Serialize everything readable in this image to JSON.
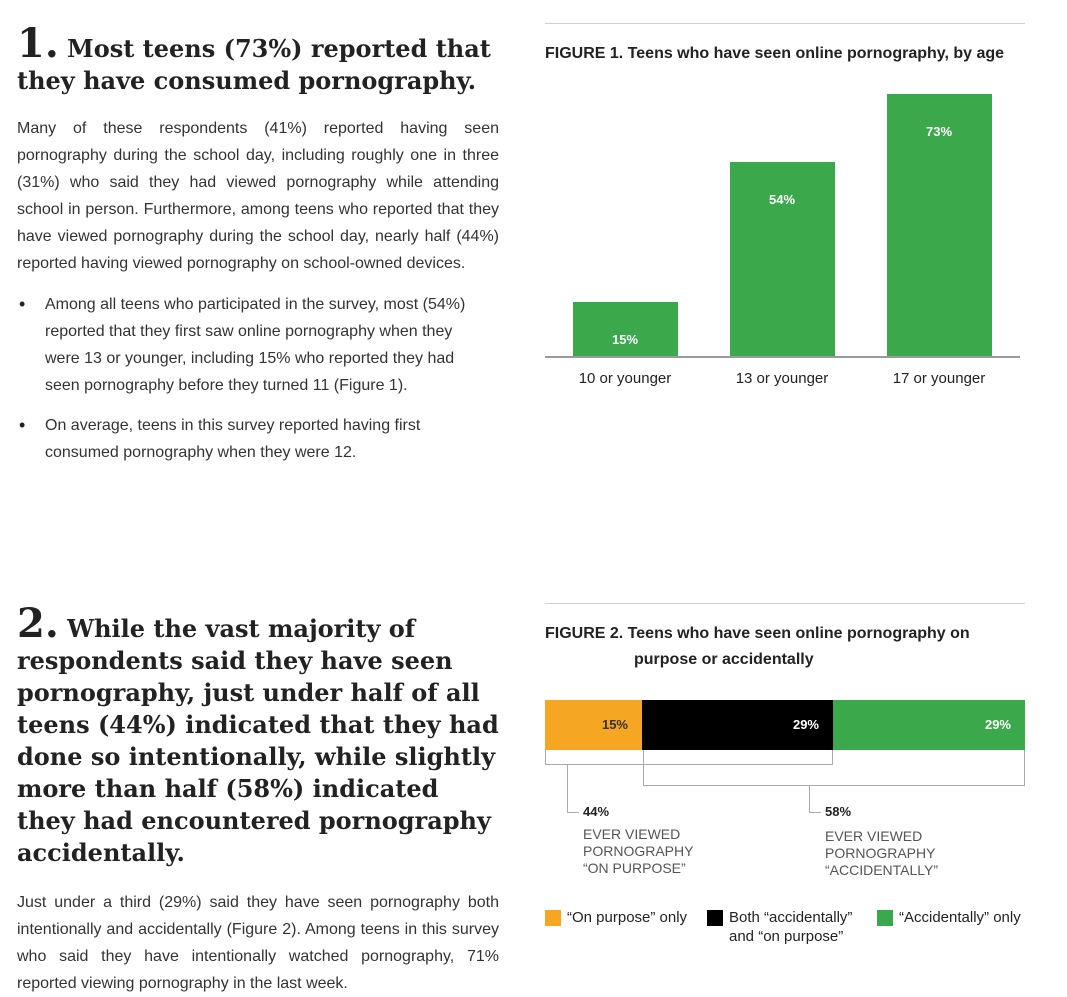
{
  "section1": {
    "number": "1.",
    "heading": "Most teens (73%) reported that they have consumed pornography.",
    "paragraph": "Many of these respondents (41%) reported having seen pornography during the school day, including roughly one in three (31%) who said they had viewed pornography while attending school in person. Furthermore, among teens who reported that they have viewed pornography during the school day, nearly half (44%) reported having viewed pornography on school-owned devices.",
    "bullets": [
      "Among all teens who participated in the survey, most (54%) reported that they first saw online pornography when they were 13 or younger, including 15% who reported they had seen pornography before they turned 11 (Figure 1).",
      "On average, teens in this survey reported having first consumed pornography when they were 12."
    ]
  },
  "section2": {
    "number": "2.",
    "heading": "While the vast majority of respondents said they have seen pornography, just under half of all teens (44%) indicated that they had done so intentionally, while slightly more than half (58%) indicated they had encountered pornography accidentally.",
    "paragraph": "Just under a third (29%) said they have seen pornography both intentionally and accidentally (Figure 2). Among teens in this survey who said they have intentionally watched pornography, 71% reported viewing pornography in the last week."
  },
  "figure1": {
    "title": "FIGURE 1. Teens who have seen online pornography, by age"
  },
  "figure2": {
    "title_line1": "FIGURE 2. Teens who have seen online pornography on",
    "title_line2": "purpose or accidentally",
    "annotation_left": {
      "value": "44%",
      "line1": "EVER VIEWED",
      "line2": "PORNOGRAPHY",
      "line3": "“ON PURPOSE”"
    },
    "annotation_right": {
      "value": "58%",
      "line1": "EVER VIEWED",
      "line2": "PORNOGRAPHY",
      "line3": "“ACCIDENTALLY”"
    },
    "legend": [
      {
        "line1": "“On purpose” only",
        "line2": "",
        "color": "#f5a623"
      },
      {
        "line1": "Both “accidentally”",
        "line2": "and “on purpose”",
        "color": "#000000"
      },
      {
        "line1": "“Accidentally” only",
        "line2": "",
        "color": "#3aa84b"
      }
    ]
  },
  "chart_data": [
    {
      "type": "bar",
      "title": "FIGURE 1. Teens who have seen online pornography, by age",
      "categories": [
        "10 or younger",
        "13 or younger",
        "17 or younger"
      ],
      "values": [
        15,
        54,
        73
      ],
      "value_labels": [
        "15%",
        "54%",
        "73%"
      ],
      "ylim": [
        0,
        73
      ],
      "grid": false,
      "color": "#3aa84b"
    },
    {
      "type": "bar",
      "orientation": "horizontal-stacked",
      "title": "FIGURE 2. Teens who have seen online pornography on purpose or accidentally",
      "segments": [
        {
          "name": "“On purpose” only",
          "value": 15,
          "label": "15%",
          "color": "#f5a623"
        },
        {
          "name": "Both “accidentally” and “on purpose”",
          "value": 29,
          "label": "29%",
          "color": "#000000"
        },
        {
          "name": "“Accidentally” only",
          "value": 29,
          "label": "29%",
          "color": "#3aa84b"
        }
      ],
      "totals": [
        {
          "label": "EVER VIEWED PORNOGRAPHY “ON PURPOSE”",
          "value": 44
        },
        {
          "label": "EVER VIEWED PORNOGRAPHY “ACCIDENTALLY”",
          "value": 58
        }
      ],
      "legend_position": "bottom"
    }
  ]
}
